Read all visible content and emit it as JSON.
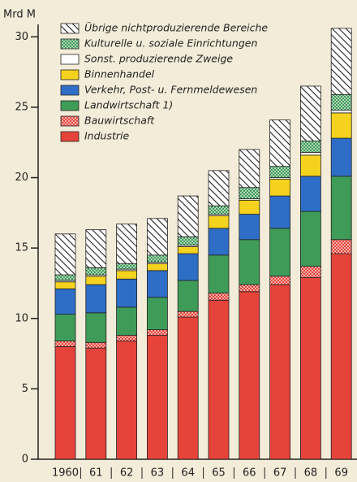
{
  "chart_data": {
    "type": "stacked_bar",
    "y_label": "Mrd M",
    "categories": [
      "1960",
      "61",
      "62",
      "63",
      "64",
      "65",
      "66",
      "67",
      "68",
      "69"
    ],
    "ylim": [
      0,
      31
    ],
    "yticks": [
      0,
      5,
      10,
      15,
      20,
      25,
      30
    ],
    "series": [
      {
        "name": "Industrie",
        "color": "#e6433a",
        "values": [
          8.0,
          7.9,
          8.4,
          8.8,
          10.1,
          11.3,
          11.9,
          12.4,
          12.9,
          14.6
        ]
      },
      {
        "name": "Bauwirtschaft",
        "color": "#e6433a",
        "pattern": "dots",
        "values": [
          0.4,
          0.4,
          0.4,
          0.4,
          0.4,
          0.5,
          0.5,
          0.6,
          0.8,
          1.0
        ]
      },
      {
        "name": "Landwirtschaft 1)",
        "color": "#3f9b58",
        "values": [
          1.9,
          2.1,
          2.0,
          2.3,
          2.2,
          2.7,
          3.2,
          3.4,
          3.9,
          4.5
        ]
      },
      {
        "name": "Verkehr, Post- u. Fernmeldewesen",
        "color": "#2e6ec6",
        "values": [
          1.8,
          2.0,
          2.0,
          1.9,
          1.9,
          1.9,
          1.8,
          2.3,
          2.5,
          2.7
        ]
      },
      {
        "name": "Binnenhandel",
        "color": "#f5d21e",
        "values": [
          0.5,
          0.6,
          0.6,
          0.5,
          0.5,
          0.9,
          1.0,
          1.2,
          1.5,
          1.8
        ]
      },
      {
        "name": "Sonst. produzierende Zweige",
        "color": "#ffffff",
        "values": [
          0.1,
          0.1,
          0.1,
          0.1,
          0.1,
          0.1,
          0.1,
          0.1,
          0.2,
          0.2
        ]
      },
      {
        "name": "Kulturelle u. soziale Einrichtungen",
        "color": "#3f9b58",
        "pattern": "dots",
        "values": [
          0.4,
          0.5,
          0.4,
          0.5,
          0.6,
          0.6,
          0.8,
          0.8,
          0.8,
          1.1
        ]
      },
      {
        "name": "Übrige nichtproduzierende Bereiche",
        "color": "#ffffff",
        "pattern": "hatch",
        "values": [
          2.9,
          2.7,
          2.8,
          2.6,
          2.9,
          2.5,
          2.7,
          3.3,
          3.9,
          4.7
        ]
      }
    ]
  }
}
